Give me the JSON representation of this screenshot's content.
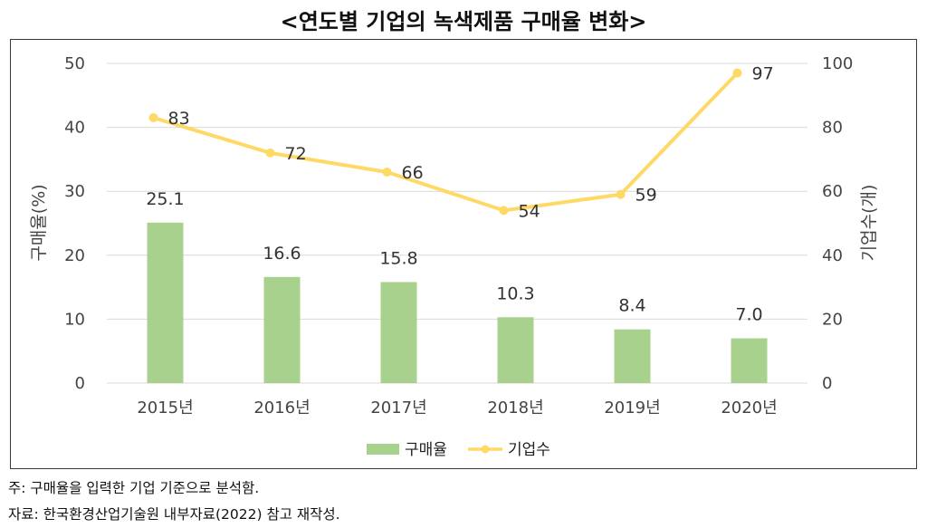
{
  "title": "<연도별 기업의 녹색제품 구매율 변화>",
  "footnotes": {
    "note": "주: 구매율을 입력한 기업 기준으로 분석함.",
    "source": "자료: 한국환경산업기술원 내부자료(2022) 참고 재작성."
  },
  "colors": {
    "bar": "#a9d18e",
    "line": "#ffd966",
    "grid": "#d9d9d9"
  },
  "chart_data": {
    "type": "bar",
    "categories": [
      "2015년",
      "2016년",
      "2017년",
      "2018년",
      "2019년",
      "2020년"
    ],
    "series": [
      {
        "name": "구매율",
        "type": "bar",
        "axis": "left",
        "values": [
          25.1,
          16.6,
          15.8,
          10.3,
          8.4,
          7.0
        ],
        "labels": [
          "25.1",
          "16.6",
          "15.8",
          "10.3",
          "8.4",
          "7.0"
        ]
      },
      {
        "name": "기업수",
        "type": "line",
        "axis": "right",
        "values": [
          83,
          72,
          66,
          54,
          59,
          97
        ],
        "labels": [
          "83",
          "72",
          "66",
          "54",
          "59",
          "97"
        ]
      }
    ],
    "ylabel": "구매율(%)",
    "y2label": "기업수(개)",
    "ylim": [
      0,
      50
    ],
    "y2lim": [
      0,
      100
    ],
    "yticks": [
      "0",
      "10",
      "20",
      "30",
      "40",
      "50"
    ],
    "y2ticks": [
      "0",
      "20",
      "40",
      "60",
      "80",
      "100"
    ],
    "grid": true,
    "legend": "bottom"
  }
}
